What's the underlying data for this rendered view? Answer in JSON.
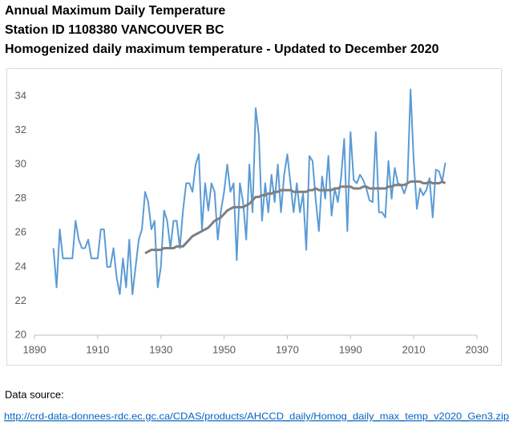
{
  "chart_data": {
    "type": "line",
    "title": [
      "Annual Maximum Daily Temperature",
      "Station ID 1108380  VANCOUVER BC",
      "Homogenized daily maximum temperature - Updated to December 2020"
    ],
    "x": [
      1896,
      1897,
      1898,
      1899,
      1900,
      1901,
      1902,
      1903,
      1904,
      1905,
      1906,
      1907,
      1908,
      1909,
      1910,
      1911,
      1912,
      1913,
      1914,
      1915,
      1916,
      1917,
      1918,
      1919,
      1920,
      1921,
      1922,
      1923,
      1924,
      1925,
      1926,
      1927,
      1928,
      1929,
      1930,
      1931,
      1932,
      1933,
      1934,
      1935,
      1936,
      1937,
      1938,
      1939,
      1940,
      1941,
      1942,
      1943,
      1944,
      1945,
      1946,
      1947,
      1948,
      1949,
      1950,
      1951,
      1952,
      1953,
      1954,
      1955,
      1956,
      1957,
      1958,
      1959,
      1960,
      1961,
      1962,
      1963,
      1964,
      1965,
      1966,
      1967,
      1968,
      1969,
      1970,
      1971,
      1972,
      1973,
      1974,
      1975,
      1976,
      1977,
      1978,
      1979,
      1980,
      1981,
      1982,
      1983,
      1984,
      1985,
      1986,
      1987,
      1988,
      1989,
      1990,
      1991,
      1992,
      1993,
      1994,
      1995,
      1996,
      1997,
      1998,
      1999,
      2000,
      2001,
      2002,
      2003,
      2004,
      2005,
      2006,
      2007,
      2008,
      2009,
      2010,
      2011,
      2012,
      2013,
      2014,
      2015,
      2016,
      2017,
      2018,
      2019,
      2020
    ],
    "series": [
      {
        "color": "#5b9bd5",
        "values": [
          25.1,
          22.8,
          26.2,
          24.5,
          24.5,
          24.5,
          24.5,
          26.7,
          25.6,
          25.1,
          25.1,
          25.6,
          24.5,
          24.5,
          24.5,
          26.2,
          26.2,
          24.0,
          24.0,
          25.1,
          23.4,
          22.4,
          24.5,
          22.8,
          25.6,
          22.4,
          24.0,
          25.6,
          26.2,
          28.4,
          27.8,
          26.2,
          26.7,
          22.8,
          24.0,
          27.3,
          26.7,
          25.1,
          26.7,
          26.7,
          25.1,
          27.3,
          28.9,
          28.9,
          28.4,
          30.0,
          30.6,
          26.2,
          28.9,
          27.3,
          28.9,
          28.4,
          25.6,
          27.3,
          28.4,
          30.0,
          28.4,
          28.9,
          24.4,
          28.9,
          27.8,
          25.6,
          30.0,
          27.2,
          33.3,
          31.7,
          26.7,
          28.9,
          27.2,
          29.4,
          27.8,
          30.0,
          27.2,
          29.4,
          30.6,
          28.9,
          27.2,
          28.9,
          27.2,
          28.3,
          25.0,
          30.5,
          30.2,
          27.9,
          26.1,
          29.3,
          28.0,
          30.5,
          27.0,
          28.6,
          27.8,
          29.2,
          31.5,
          26.1,
          31.9,
          29.1,
          28.9,
          29.4,
          29.1,
          28.6,
          27.9,
          27.8,
          31.9,
          27.2,
          27.2,
          26.9,
          30.2,
          28.0,
          29.8,
          28.9,
          28.8,
          28.3,
          28.9,
          34.4,
          30.2,
          27.4,
          28.6,
          28.2,
          28.5,
          29.2,
          26.9,
          29.7,
          29.6,
          29.0,
          30.1
        ]
      },
      {
        "color": "#7f7f7f",
        "values": [
          null,
          null,
          null,
          null,
          null,
          null,
          null,
          null,
          null,
          null,
          null,
          null,
          null,
          null,
          null,
          null,
          null,
          null,
          null,
          null,
          null,
          null,
          null,
          null,
          null,
          null,
          null,
          null,
          null,
          24.8,
          24.9,
          25.0,
          25.0,
          25.0,
          25.0,
          25.1,
          25.1,
          25.1,
          25.1,
          25.2,
          25.2,
          25.2,
          25.4,
          25.6,
          25.8,
          25.9,
          26.0,
          26.1,
          26.2,
          26.3,
          26.5,
          26.7,
          26.8,
          26.9,
          27.1,
          27.3,
          27.4,
          27.5,
          27.5,
          27.5,
          27.5,
          27.6,
          27.7,
          27.9,
          28.1,
          28.1,
          28.2,
          28.2,
          28.3,
          28.3,
          28.4,
          28.4,
          28.5,
          28.5,
          28.5,
          28.5,
          28.4,
          28.4,
          28.4,
          28.4,
          28.4,
          28.5,
          28.5,
          28.6,
          28.5,
          28.5,
          28.5,
          28.5,
          28.5,
          28.6,
          28.6,
          28.7,
          28.7,
          28.7,
          28.7,
          28.6,
          28.6,
          28.6,
          28.7,
          28.7,
          28.6,
          28.6,
          28.6,
          28.6,
          28.6,
          28.6,
          28.7,
          28.7,
          28.8,
          28.8,
          28.8,
          28.8,
          28.9,
          29.0,
          29.0,
          29.0,
          29.0,
          28.9,
          28.9,
          29.0,
          28.9,
          28.9,
          28.9,
          29.0,
          28.9
        ]
      }
    ],
    "xlim": [
      1890,
      2030
    ],
    "xticks": [
      1890,
      1910,
      1930,
      1950,
      1970,
      1990,
      2010,
      2030
    ],
    "ylim": [
      20,
      34
    ],
    "yticks": [
      20,
      22,
      24,
      26,
      28,
      30,
      32,
      34
    ],
    "grid": false
  },
  "source": {
    "label": "Data source:",
    "link": "http://crd-data-donnees-rdc.ec.gc.ca/CDAS/products/AHCCD_daily/Homog_daily_max_temp_v2020_Gen3.zip"
  }
}
